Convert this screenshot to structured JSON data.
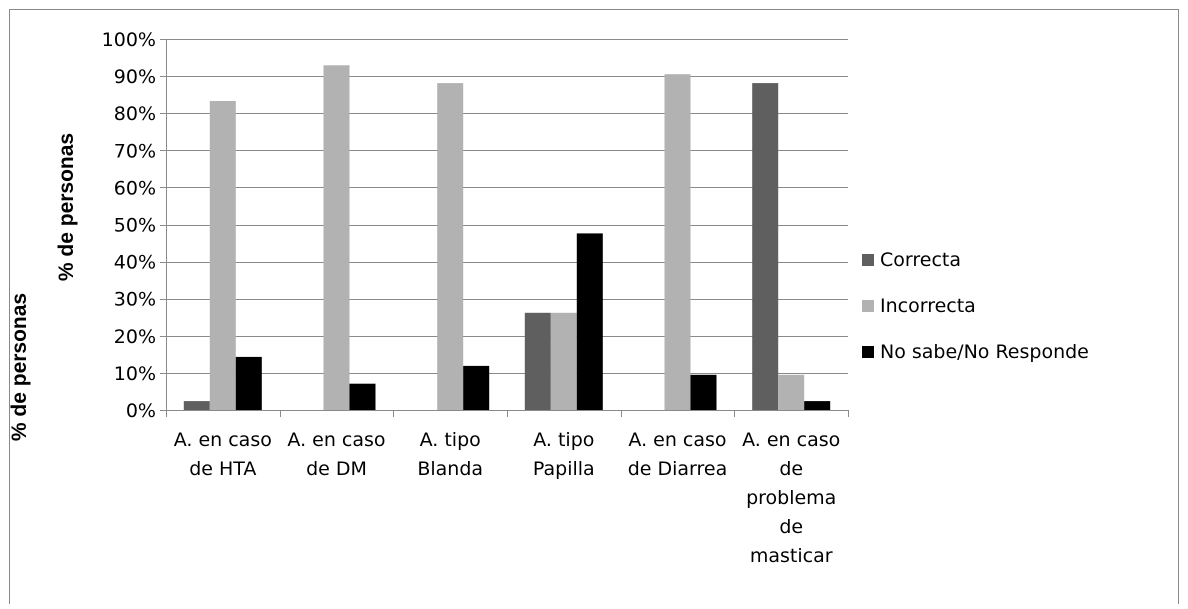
{
  "chart_data": {
    "type": "bar",
    "ylabel": "% de personas",
    "ylabel_outer": "% de personas",
    "ylim": [
      0,
      100
    ],
    "y_ticks": [
      "0%",
      "10%",
      "20%",
      "30%",
      "40%",
      "50%",
      "60%",
      "70%",
      "80%",
      "90%",
      "100%"
    ],
    "grid": true,
    "legend_position": "right",
    "categories": [
      [
        "A. en caso",
        "de HTA"
      ],
      [
        "A. en caso",
        "de DM"
      ],
      [
        "A. tipo",
        "Blanda"
      ],
      [
        "A. tipo",
        "Papilla"
      ],
      [
        "A. en caso",
        "de Diarrea"
      ],
      [
        "A. en caso",
        "de",
        "problema",
        "de",
        "masticar"
      ]
    ],
    "series": [
      {
        "name": "Correcta",
        "color": "#5f5f5f",
        "values": [
          2.4,
          0,
          0,
          26.2,
          0,
          88.1
        ]
      },
      {
        "name": "Incorrecta",
        "color": "#b2b2b2",
        "values": [
          83.3,
          92.9,
          88.1,
          26.2,
          90.5,
          9.5
        ]
      },
      {
        "name": "No sabe/No Responde",
        "color": "#000000",
        "values": [
          14.3,
          7.1,
          11.9,
          47.6,
          9.5,
          2.4
        ]
      }
    ]
  }
}
